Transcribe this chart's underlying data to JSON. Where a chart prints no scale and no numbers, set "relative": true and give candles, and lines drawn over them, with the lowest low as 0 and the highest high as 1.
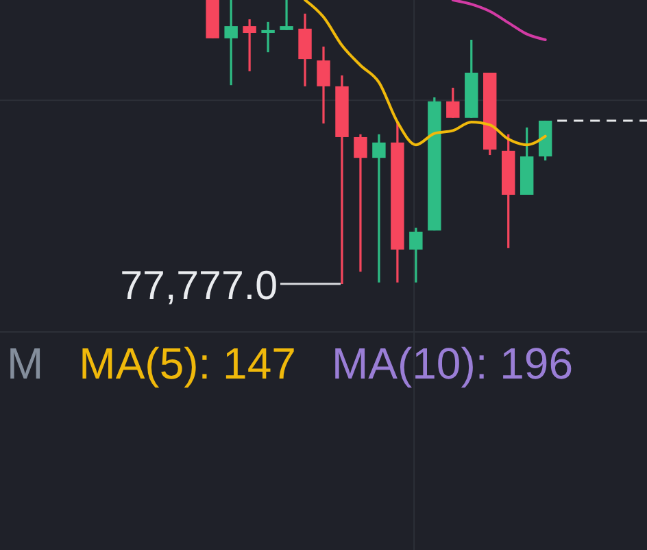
{
  "chart_data": {
    "type": "candlestick",
    "relative": true,
    "categories": [
      null,
      null,
      null,
      null,
      null,
      null,
      null,
      null,
      null,
      null,
      null,
      null,
      null,
      null,
      null,
      null,
      null,
      null,
      null,
      null,
      null,
      null,
      null,
      null,
      null,
      null,
      null,
      null,
      null,
      null,
      null,
      null,
      null,
      null,
      null
    ],
    "ohlc": [
      null,
      null,
      null,
      null,
      null,
      null,
      null,
      null,
      null,
      null,
      null,
      [
        1,
        1,
        0.865,
        0.865
      ],
      [
        0.865,
        1,
        0.7,
        0.908
      ],
      [
        0.908,
        0.932,
        0.749,
        0.884
      ],
      [
        0.884,
        0.923,
        0.816,
        0.894
      ],
      [
        0.894,
        1,
        0.894,
        0.908
      ],
      [
        0.899,
        0.952,
        0.696,
        0.792
      ],
      [
        0.787,
        0.836,
        0.565,
        0.696
      ],
      [
        0.696,
        0.734,
        0,
        0.517
      ],
      [
        0.517,
        0.527,
        0.043,
        0.444
      ],
      [
        0.444,
        0.527,
        0.005,
        0.498
      ],
      [
        0.498,
        0.57,
        0.005,
        0.121
      ],
      [
        0.121,
        0.198,
        0.005,
        0.184
      ],
      [
        0.188,
        0.657,
        0.188,
        0.643
      ],
      [
        0.643,
        0.691,
        0.585,
        0.585
      ],
      [
        0.585,
        0.86,
        0.585,
        0.744
      ],
      [
        0.744,
        0.744,
        0.454,
        0.473
      ],
      [
        0.469,
        0.527,
        0.126,
        0.314
      ],
      [
        0.314,
        0.551,
        0.314,
        0.449
      ],
      [
        0.449,
        0.575,
        0.435,
        0.575
      ],
      null,
      null,
      null,
      null,
      null
    ],
    "colors": [
      null,
      null,
      null,
      null,
      null,
      null,
      null,
      null,
      null,
      null,
      null,
      "#f6465d",
      "#2ebd85",
      "#f6465d",
      "#2ebd85",
      "#2ebd85",
      "#f6465d",
      "#f6465d",
      "#f6465d",
      "#f6465d",
      "#2ebd85",
      "#f6465d",
      "#2ebd85",
      "#2ebd85",
      "#f6465d",
      "#2ebd85",
      "#f6465d",
      "#f6465d",
      "#2ebd85",
      "#2ebd85",
      null,
      null,
      null,
      null,
      null
    ],
    "series": [
      {
        "type": "line",
        "color": "#f0b90b",
        "values": [
          null,
          null,
          null,
          null,
          null,
          null,
          null,
          null,
          null,
          null,
          null,
          null,
          null,
          null,
          null,
          null,
          1,
          0.94,
          0.84,
          0.77,
          0.71,
          0.57,
          0.49,
          0.53,
          0.54,
          0.57,
          0.56,
          0.51,
          0.49,
          0.52,
          null,
          null,
          null,
          null,
          null
        ]
      },
      {
        "type": "line",
        "color": "#d23ba4",
        "values": [
          null,
          null,
          null,
          null,
          null,
          null,
          null,
          null,
          null,
          null,
          null,
          null,
          null,
          null,
          null,
          null,
          null,
          null,
          null,
          null,
          null,
          null,
          null,
          null,
          1,
          0.985,
          0.96,
          0.92,
          0.88,
          0.86,
          null,
          null,
          null,
          null,
          null
        ]
      }
    ],
    "ref_lines": [
      {
        "axis": "y",
        "value": 0.647,
        "color": "#2c3038"
      },
      {
        "axis": "y",
        "value": 0.575,
        "color": "#e6e8ea",
        "line_style": "dashed"
      }
    ],
    "annotations": [
      "77,777.0",
      "M",
      "MA(5): 147",
      "MA(10): 196"
    ]
  }
}
